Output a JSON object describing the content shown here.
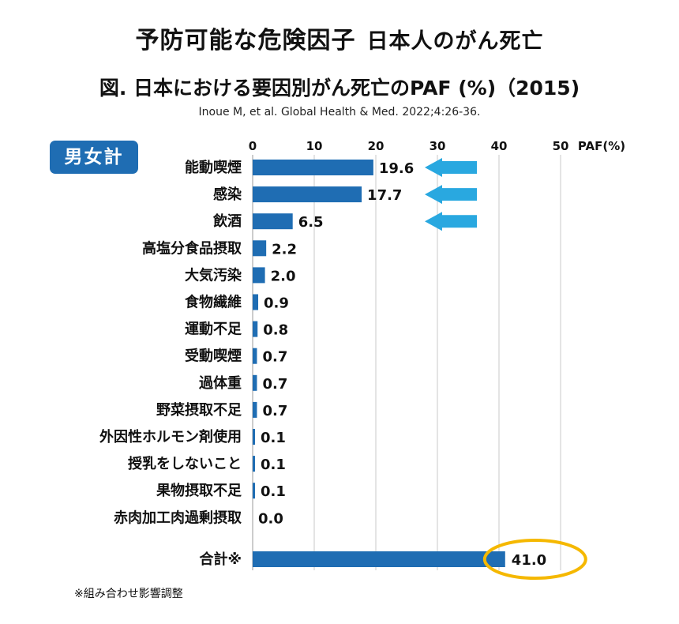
{
  "header": {
    "title": "予防可能な危険因子",
    "subtitle": "日本人のがん死亡",
    "figure_title": "図. 日本における要因別がん死亡のPAF (%)（2015)",
    "citation": "Inoue M, et al. Global Health & Med. 2022;4:26-36.",
    "badge": "男女計"
  },
  "footnote": "※組み合わせ影響調整",
  "colors": {
    "bar": "#1f6db3",
    "arrow": "#29a8e0",
    "highlight": "#f5b800",
    "grid": "#c8c8c8"
  },
  "chart_data": {
    "type": "bar",
    "orientation": "horizontal",
    "xlabel": "PAF(%)",
    "xlim": [
      0,
      50
    ],
    "xticks": [
      "0",
      "10",
      "20",
      "30",
      "40",
      "50"
    ],
    "grid": true,
    "categories": [
      "能動喫煙",
      "感染",
      "飲酒",
      "高塩分食品摂取",
      "大気汚染",
      "食物繊維",
      "運動不足",
      "受動喫煙",
      "過体重",
      "野菜摂取不足",
      "外因性ホルモン剤使用",
      "授乳をしないこと",
      "果物摂取不足",
      "赤肉加工肉過剰摂取"
    ],
    "values": [
      19.6,
      17.7,
      6.5,
      2.2,
      2.0,
      0.9,
      0.8,
      0.7,
      0.7,
      0.7,
      0.1,
      0.1,
      0.1,
      0.0
    ],
    "value_labels": [
      "19.6",
      "17.7",
      "6.5",
      "2.2",
      "2.0",
      "0.9",
      "0.8",
      "0.7",
      "0.7",
      "0.7",
      "0.1",
      "0.1",
      "0.1",
      "0.0"
    ],
    "total": {
      "label": "合計※",
      "value": 41.0,
      "value_label": "41.0"
    },
    "arrows_on": [
      "能動喫煙",
      "感染",
      "飲酒"
    ]
  }
}
